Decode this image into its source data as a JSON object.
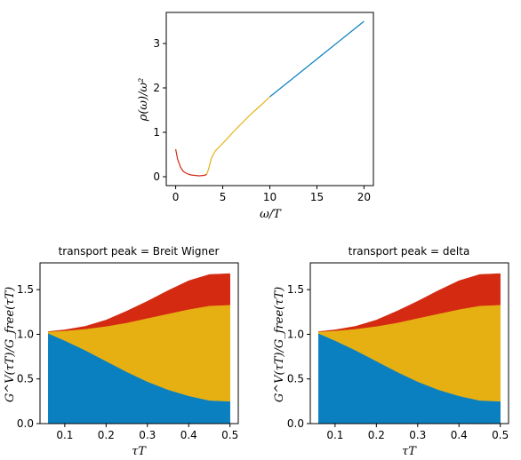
{
  "colors": {
    "blue": "#0a80c0",
    "yellow": "#e6b012",
    "red": "#d42a12",
    "axes": "#000000"
  },
  "chart_data": [
    {
      "type": "line",
      "title": "",
      "xlabel": "ω/T",
      "ylabel": "ρ(ω)/ω²",
      "xlim": [
        -1,
        21
      ],
      "ylim": [
        -0.2,
        3.7
      ],
      "xticks": [
        0,
        5,
        10,
        15,
        20
      ],
      "yticks": [
        0,
        1,
        2,
        3
      ],
      "xtick_labels": [
        "0",
        "5",
        "10",
        "15",
        "20"
      ],
      "ytick_labels": [
        "0",
        "1",
        "2",
        "3"
      ],
      "grid": false,
      "series": [
        {
          "color": "#d42a12",
          "x": [
            0,
            0.2,
            0.5,
            0.8,
            1.2,
            1.6,
            2.0,
            2.5,
            3.0,
            3.3
          ],
          "y": [
            0.62,
            0.4,
            0.22,
            0.12,
            0.07,
            0.04,
            0.03,
            0.02,
            0.03,
            0.05
          ]
        },
        {
          "color": "#e6b012",
          "x": [
            3.3,
            3.5,
            3.8,
            4.2,
            5.0,
            6.0,
            7.0,
            8.0,
            9.0,
            10.0
          ],
          "y": [
            0.05,
            0.18,
            0.42,
            0.58,
            0.75,
            0.98,
            1.2,
            1.41,
            1.6,
            1.8
          ]
        },
        {
          "color": "#0a80c0",
          "x": [
            10.0,
            12.0,
            14.0,
            16.0,
            18.0,
            20.0
          ],
          "y": [
            1.8,
            2.14,
            2.48,
            2.82,
            3.16,
            3.5
          ]
        }
      ]
    },
    {
      "type": "area",
      "title": "transport peak = Breit Wigner",
      "xlabel": "τT",
      "ylabel": "G^V(τT)/G_free(τT)",
      "xlim": [
        0.04,
        0.52
      ],
      "ylim": [
        0,
        1.8
      ],
      "xticks": [
        0.1,
        0.2,
        0.3,
        0.4,
        0.5
      ],
      "yticks": [
        0.0,
        0.5,
        1.0,
        1.5
      ],
      "xtick_labels": [
        "0.1",
        "0.2",
        "0.3",
        "0.4",
        "0.5"
      ],
      "ytick_labels": [
        "0.0",
        "0.5",
        "1.0",
        "1.5"
      ],
      "grid": false,
      "x": [
        0.06,
        0.1,
        0.15,
        0.2,
        0.25,
        0.3,
        0.35,
        0.4,
        0.45,
        0.5
      ],
      "series": [
        {
          "color": "#0a80c0",
          "values": [
            1.01,
            0.93,
            0.82,
            0.7,
            0.58,
            0.47,
            0.38,
            0.31,
            0.26,
            0.25
          ]
        },
        {
          "color": "#e6b012",
          "values": [
            1.03,
            1.04,
            1.06,
            1.09,
            1.13,
            1.18,
            1.23,
            1.28,
            1.32,
            1.33
          ]
        },
        {
          "color": "#d42a12",
          "values": [
            1.03,
            1.05,
            1.09,
            1.16,
            1.26,
            1.37,
            1.49,
            1.6,
            1.67,
            1.68
          ]
        }
      ]
    },
    {
      "type": "area",
      "title": "transport peak = delta",
      "xlabel": "τT",
      "ylabel": "G^V(τT)/G_free(τT)",
      "xlim": [
        0.04,
        0.52
      ],
      "ylim": [
        0,
        1.8
      ],
      "xticks": [
        0.1,
        0.2,
        0.3,
        0.4,
        0.5
      ],
      "yticks": [
        0.0,
        0.5,
        1.0,
        1.5
      ],
      "xtick_labels": [
        "0.1",
        "0.2",
        "0.3",
        "0.4",
        "0.5"
      ],
      "ytick_labels": [
        "0.0",
        "0.5",
        "1.0",
        "1.5"
      ],
      "grid": false,
      "x": [
        0.06,
        0.1,
        0.15,
        0.2,
        0.25,
        0.3,
        0.35,
        0.4,
        0.45,
        0.5
      ],
      "series": [
        {
          "color": "#0a80c0",
          "values": [
            1.01,
            0.93,
            0.82,
            0.7,
            0.58,
            0.47,
            0.38,
            0.31,
            0.26,
            0.25
          ]
        },
        {
          "color": "#e6b012",
          "values": [
            1.03,
            1.04,
            1.06,
            1.09,
            1.13,
            1.18,
            1.23,
            1.28,
            1.32,
            1.33
          ]
        },
        {
          "color": "#d42a12",
          "values": [
            1.03,
            1.05,
            1.09,
            1.16,
            1.26,
            1.37,
            1.49,
            1.6,
            1.67,
            1.68
          ]
        }
      ]
    }
  ]
}
